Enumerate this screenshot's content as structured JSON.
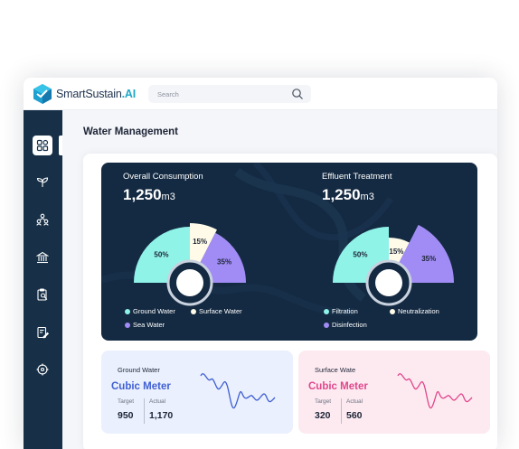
{
  "app": {
    "brand_prefix": "SmartSustain",
    "brand_suffix": ".AI"
  },
  "search": {
    "placeholder": "Search"
  },
  "sidebar": {
    "items": [
      {
        "icon": "dashboard-grid-icon",
        "active": true
      },
      {
        "icon": "sprout-icon"
      },
      {
        "icon": "community-icon"
      },
      {
        "icon": "bank-icon"
      },
      {
        "icon": "clipboard-search-icon"
      },
      {
        "icon": "document-edit-icon"
      },
      {
        "icon": "target-icon"
      }
    ]
  },
  "page": {
    "title": "Water Management"
  },
  "consumption": {
    "label": "Overall Consumption",
    "value": "1,250",
    "unit": "m3",
    "chart_data": {
      "type": "pie",
      "categories": [
        "Ground Water",
        "Surface Water",
        "Sea Water"
      ],
      "values": [
        50,
        15,
        35
      ],
      "labels": [
        "50%",
        "15%",
        "35%"
      ],
      "colors": [
        "#8ff3e8",
        "#fffbe8",
        "#a18cf5"
      ]
    }
  },
  "effluent": {
    "label": "Effluent Treatment",
    "value": "1,250",
    "unit": "m3",
    "chart_data": {
      "type": "pie",
      "categories": [
        "Filtration",
        "Neutralization",
        "Disinfection"
      ],
      "values": [
        50,
        15,
        35
      ],
      "labels": [
        "50%",
        "15%",
        "35%"
      ],
      "colors": [
        "#8ff3e8",
        "#fffbe8",
        "#a18cf5"
      ]
    }
  },
  "ground_water": {
    "title": "Ground Water",
    "unit": "Cubic Meter",
    "target_label": "Target",
    "actual_label": "Actual",
    "target": "950",
    "actual": "1,170",
    "line_color": "#3f5fd3"
  },
  "surface_water": {
    "title": "Surface Wate",
    "unit": "Cubic Meter",
    "target_label": "Target",
    "actual_label": "Actual",
    "target": "320",
    "actual": "560",
    "line_color": "#e0478c"
  }
}
